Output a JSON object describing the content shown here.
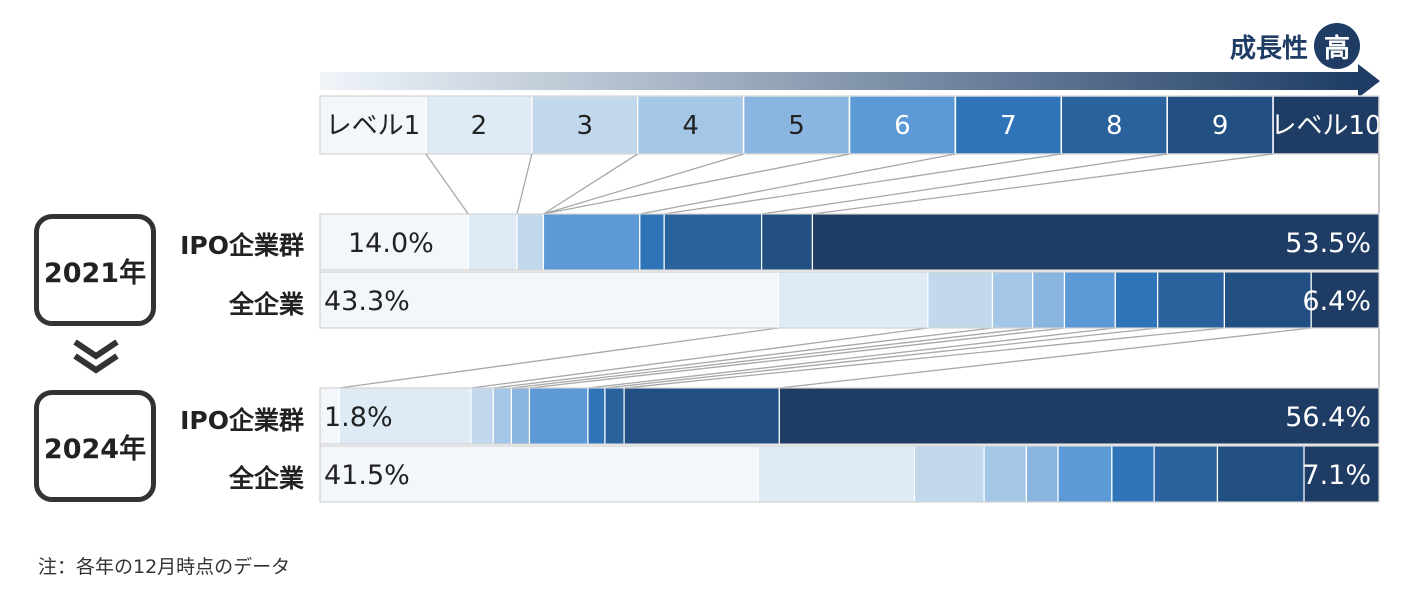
{
  "header": {
    "growth_label": "成長性",
    "growth_badge": "高"
  },
  "levels": [
    "レベル1",
    "2",
    "3",
    "4",
    "5",
    "6",
    "7",
    "8",
    "9",
    "レベル10"
  ],
  "level_colors": [
    "#f3f7fb",
    "#deebf6",
    "#c1d8ed",
    "#a4c6e7",
    "#8ab5e1",
    "#5b9ad6",
    "#2f74b8",
    "#2a629e",
    "#224f82",
    "#1e3c64"
  ],
  "groups": [
    {
      "year": "2021年",
      "rows": [
        {
          "label": "IPO企業群",
          "shares": [
            14.0,
            4.6,
            2.5,
            0,
            0,
            9.1,
            2.3,
            9.2,
            4.8,
            53.5
          ],
          "value_labels": {
            "first": "14.0%",
            "last": "53.5%"
          }
        },
        {
          "label": "全企業",
          "shares": [
            43.3,
            14.1,
            6.1,
            3.8,
            3.0,
            4.8,
            4.0,
            6.3,
            8.2,
            6.4
          ],
          "value_labels": {
            "first": "43.3%",
            "last": "6.4%"
          }
        }
      ]
    },
    {
      "year": "2024年",
      "rows": [
        {
          "label": "IPO企業群",
          "shares": [
            1.8,
            12.4,
            2.1,
            1.7,
            1.7,
            5.5,
            1.6,
            1.8,
            14.6,
            56.4
          ],
          "value_labels": {
            "first": "1.8%",
            "last": "56.4%"
          }
        },
        {
          "label": "全企業",
          "shares": [
            41.5,
            14.8,
            6.6,
            4.0,
            3.0,
            5.1,
            4.0,
            6.0,
            8.2,
            7.1
          ],
          "value_labels": {
            "first": "41.5%",
            "last": "7.1%"
          }
        }
      ]
    }
  ],
  "note": "注：各年の12月時点のデータ",
  "chart_data": {
    "type": "bar",
    "orientation": "horizontal-stacked-100",
    "categories": [
      "2021年 IPO企業群",
      "2021年 全企業",
      "2024年 IPO企業群",
      "2024年 全企業"
    ],
    "series": [
      {
        "name": "レベル1",
        "values": [
          14.0,
          43.3,
          1.8,
          41.5
        ]
      },
      {
        "name": "2",
        "values": [
          4.6,
          14.1,
          12.4,
          14.8
        ]
      },
      {
        "name": "3",
        "values": [
          2.5,
          6.1,
          2.1,
          6.6
        ]
      },
      {
        "name": "4",
        "values": [
          0,
          3.8,
          1.7,
          4.0
        ]
      },
      {
        "name": "5",
        "values": [
          0,
          3.0,
          1.7,
          3.0
        ]
      },
      {
        "name": "6",
        "values": [
          9.1,
          4.8,
          5.5,
          5.1
        ]
      },
      {
        "name": "7",
        "values": [
          2.3,
          4.0,
          1.6,
          4.0
        ]
      },
      {
        "name": "8",
        "values": [
          9.2,
          6.3,
          1.8,
          6.0
        ]
      },
      {
        "name": "9",
        "values": [
          4.8,
          8.2,
          14.6,
          8.2
        ]
      },
      {
        "name": "レベル10",
        "values": [
          53.5,
          6.4,
          56.4,
          7.1
        ]
      }
    ],
    "unit": "%",
    "xlim": [
      0,
      100
    ],
    "legend": "top"
  }
}
